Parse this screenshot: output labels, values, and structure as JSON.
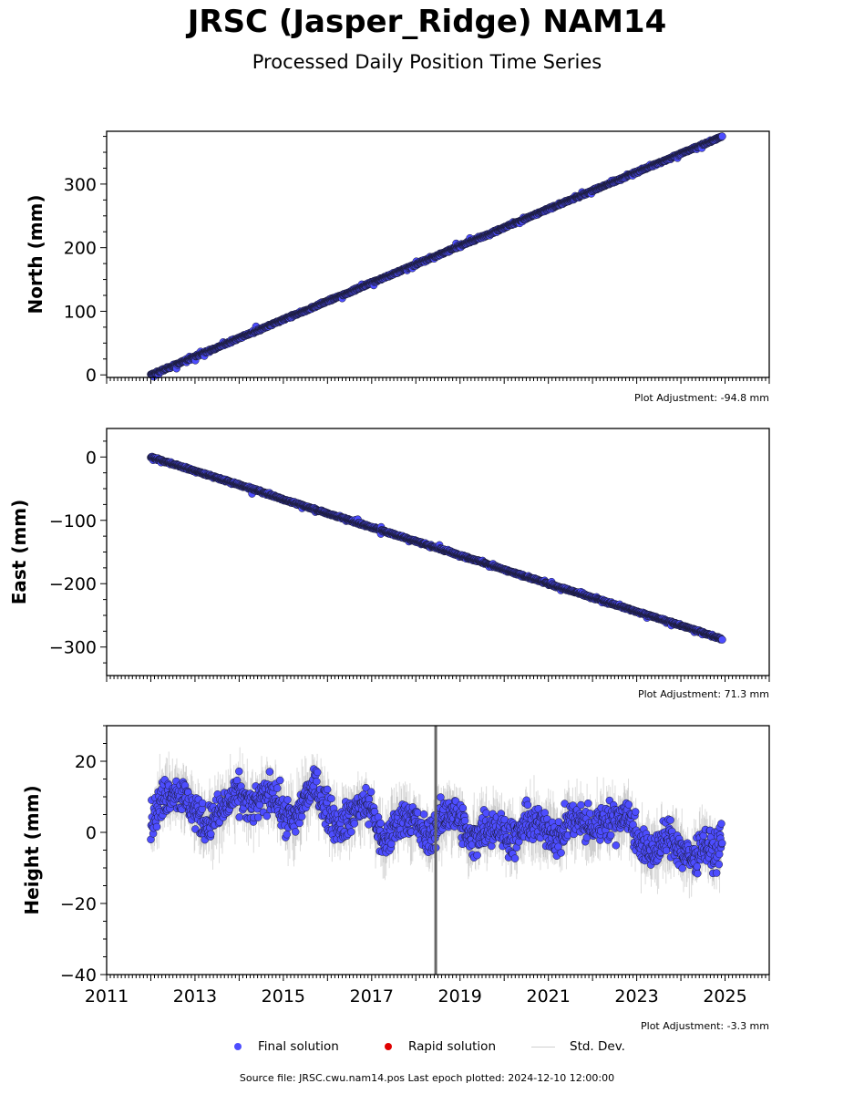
{
  "title": "JRSC (Jasper_Ridge) NAM14",
  "subtitle": "Processed Daily Position Time Series",
  "legend": {
    "final_label": "Final solution",
    "rapid_label": "Rapid solution",
    "std_label": "Std. Dev.",
    "final_color": "#4d4dff",
    "rapid_color": "#e00000",
    "std_color": "#cfcfcf"
  },
  "source_text": "Source file: JRSC.cwu.nam14.pos  Last epoch plotted: 2024-12-10 12:00:00",
  "chart_data": [
    {
      "type": "scatter",
      "ylabel": "North (mm)",
      "adjustment": "Plot Adjustment: -94.8 mm",
      "xlim": [
        2011,
        2026
      ],
      "ylim": [
        -4,
        383
      ],
      "yticks": [
        0,
        100,
        200,
        300
      ],
      "ytick_labels": [
        "0",
        "100",
        "200",
        "300"
      ],
      "series": [
        {
          "x": [
            2012.0,
            2012.5,
            2013.0,
            2013.5,
            2014.0,
            2014.5,
            2015.0,
            2015.5,
            2016.0,
            2016.5,
            2017.0,
            2017.5,
            2018.0,
            2018.5,
            2019.0,
            2019.5,
            2020.0,
            2020.5,
            2021.0,
            2021.5,
            2022.0,
            2022.5,
            2023.0,
            2023.5,
            2024.0,
            2024.5,
            2024.94
          ],
          "y": [
            0,
            14,
            29,
            43,
            58,
            72,
            87,
            101,
            116,
            130,
            145,
            159,
            174,
            188,
            203,
            217,
            232,
            246,
            261,
            275,
            290,
            304,
            319,
            333,
            348,
            362,
            375
          ]
        }
      ]
    },
    {
      "type": "scatter",
      "ylabel": "East (mm)",
      "adjustment": "Plot Adjustment: 71.3 mm",
      "xlim": [
        2011,
        2026
      ],
      "ylim": [
        -345,
        45
      ],
      "yticks": [
        0,
        -100,
        -200,
        -300
      ],
      "ytick_labels": [
        "0",
        "−100",
        "−200",
        "−300"
      ],
      "series": [
        {
          "x": [
            2012.0,
            2012.5,
            2013.0,
            2013.5,
            2014.0,
            2014.5,
            2015.0,
            2015.5,
            2016.0,
            2016.5,
            2017.0,
            2017.5,
            2018.0,
            2018.5,
            2019.0,
            2019.5,
            2020.0,
            2020.5,
            2021.0,
            2021.5,
            2022.0,
            2022.5,
            2023.0,
            2023.5,
            2024.0,
            2024.5,
            2024.94
          ],
          "y": [
            0,
            -11,
            -22,
            -33,
            -44,
            -55,
            -67,
            -78,
            -89,
            -100,
            -111,
            -122,
            -133,
            -144,
            -155,
            -166,
            -178,
            -189,
            -200,
            -211,
            -222,
            -233,
            -244,
            -255,
            -266,
            -277,
            -288
          ]
        }
      ]
    },
    {
      "type": "scatter",
      "ylabel": "Height (mm)",
      "adjustment": "Plot Adjustment: -3.3 mm",
      "xlim": [
        2011,
        2026
      ],
      "ylim": [
        -40,
        30
      ],
      "yticks": [
        20,
        0,
        -20,
        -40
      ],
      "ytick_labels": [
        "20",
        "0",
        "−20",
        "−40"
      ],
      "xticks": [
        2011,
        2013,
        2015,
        2017,
        2019,
        2021,
        2023,
        2025
      ],
      "xtick_labels": [
        "2011",
        "2013",
        "2015",
        "2017",
        "2019",
        "2021",
        "2023",
        "2025"
      ],
      "series": [
        {
          "x": [
            2012.0,
            2012.25,
            2012.5,
            2012.75,
            2013.0,
            2013.25,
            2013.5,
            2013.75,
            2014.0,
            2014.25,
            2014.5,
            2014.75,
            2015.0,
            2015.25,
            2015.5,
            2015.75,
            2016.0,
            2016.25,
            2016.5,
            2016.75,
            2017.0,
            2017.25,
            2017.5,
            2017.75,
            2018.0,
            2018.25,
            2018.5,
            2018.75,
            2019.0,
            2019.25,
            2019.5,
            2019.75,
            2020.0,
            2020.25,
            2020.5,
            2020.75,
            2021.0,
            2021.25,
            2021.5,
            2021.75,
            2022.0,
            2022.25,
            2022.5,
            2022.75,
            2023.0,
            2023.25,
            2023.5,
            2023.75,
            2024.0,
            2024.25,
            2024.5,
            2024.75,
            2024.94
          ],
          "y": [
            3,
            9,
            12,
            10,
            6,
            2,
            5,
            8,
            11,
            7,
            9,
            12,
            5,
            3,
            10,
            13,
            6,
            2,
            4,
            8,
            7,
            -4,
            1,
            5,
            3,
            -2,
            2,
            6,
            4,
            -3,
            1,
            2,
            0,
            -2,
            3,
            2,
            1,
            -2,
            4,
            3,
            1,
            4,
            3,
            6,
            -1,
            -6,
            -4,
            -1,
            -5,
            -8,
            -3,
            -6,
            -2
          ]
        }
      ],
      "gap_marker_x": 2018.45
    }
  ]
}
